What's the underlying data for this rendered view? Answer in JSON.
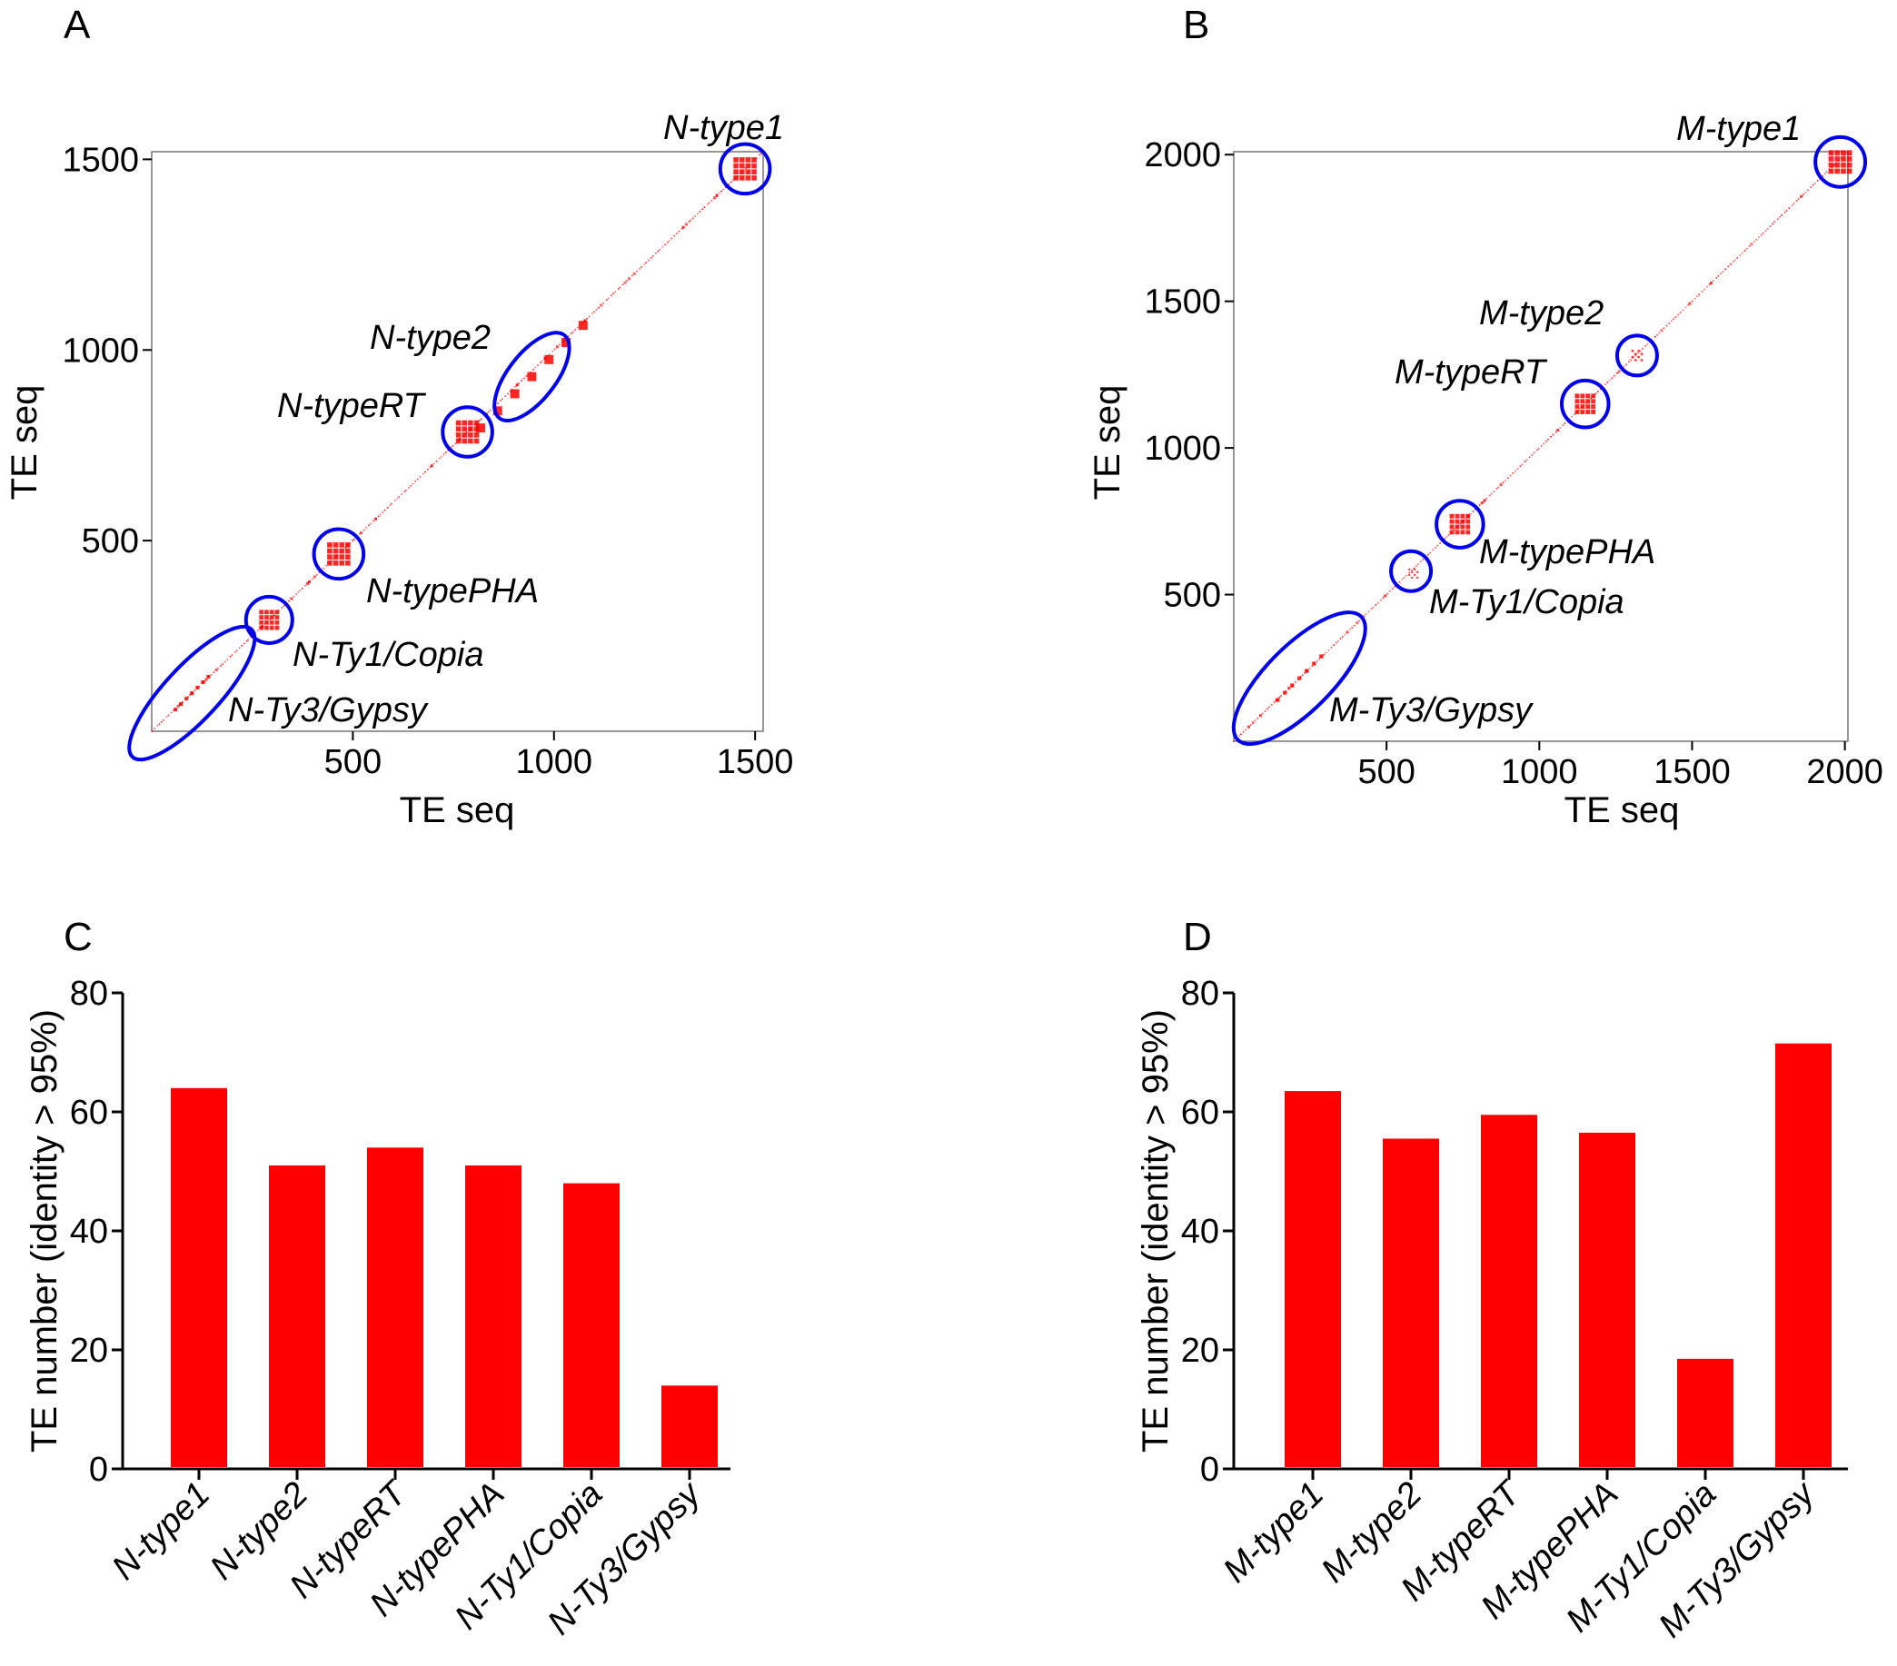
{
  "panels": [
    {
      "id": "A",
      "label": "A"
    },
    {
      "id": "B",
      "label": "B"
    },
    {
      "id": "C",
      "label": "C"
    },
    {
      "id": "D",
      "label": "D"
    }
  ],
  "chart_data": [
    {
      "panel": "A",
      "type": "scatter",
      "title": "",
      "xlabel": "TE seq",
      "ylabel": "TE seq",
      "xlim": [
        0,
        1520
      ],
      "ylim": [
        0,
        1520
      ],
      "xticks": [
        500,
        1000,
        1500
      ],
      "yticks": [
        500,
        1000,
        1500
      ],
      "colors": {
        "dots": "#ff0000",
        "circles": "#0000ee"
      },
      "clusters": [
        {
          "label": "N-type1",
          "x": 1475,
          "y": 1475,
          "halfsize": 30,
          "shape": "circle"
        },
        {
          "label": "N-type2",
          "x": 945,
          "y": 930,
          "halfsize": 25,
          "shape": "ellipse"
        },
        {
          "label": "N-typeRT",
          "x": 785,
          "y": 785,
          "halfsize": 30,
          "shape": "circle"
        },
        {
          "label": "N-typePHA",
          "x": 465,
          "y": 465,
          "halfsize": 30,
          "shape": "circle"
        },
        {
          "label": "N-Ty1/Copia",
          "x": 292,
          "y": 292,
          "halfsize": 26,
          "shape": "circle"
        },
        {
          "label": "N-Ty3/Gypsy",
          "x": 100,
          "y": 100,
          "halfsize": 8,
          "shape": "ellipse"
        }
      ]
    },
    {
      "panel": "B",
      "type": "scatter",
      "title": "",
      "xlabel": "TE seq",
      "ylabel": "TE seq",
      "xlim": [
        0,
        2010
      ],
      "ylim": [
        0,
        2010
      ],
      "xticks": [
        500,
        1000,
        1500,
        2000
      ],
      "yticks": [
        500,
        1000,
        1500,
        2000
      ],
      "colors": {
        "dots": "#ff0000",
        "circles": "#0000ee"
      },
      "clusters": [
        {
          "label": "M-type1",
          "x": 1985,
          "y": 1975,
          "halfsize": 40,
          "shape": "circle"
        },
        {
          "label": "M-type2",
          "x": 1320,
          "y": 1315,
          "halfsize": 20,
          "shape": "circle"
        },
        {
          "label": "M-typeRT",
          "x": 1150,
          "y": 1150,
          "halfsize": 35,
          "shape": "circle"
        },
        {
          "label": "M-typePHA",
          "x": 740,
          "y": 740,
          "halfsize": 35,
          "shape": "circle"
        },
        {
          "label": "M-Ty1/Copia",
          "x": 580,
          "y": 580,
          "halfsize": 10,
          "shape": "circle"
        },
        {
          "label": "M-Ty3/Gypsy",
          "x": 215,
          "y": 215,
          "halfsize": 14,
          "shape": "ellipse"
        }
      ]
    },
    {
      "panel": "C",
      "type": "bar",
      "title": "",
      "xlabel": "",
      "ylabel": "TE number (identity > 95%)",
      "ylim": [
        0,
        80
      ],
      "yticks": [
        0,
        20,
        40,
        60,
        80
      ],
      "categories": [
        "N-type1",
        "N-type2",
        "N-typeRT",
        "N-typePHA",
        "N-Ty1/Copia",
        "N-Ty3/Gypsy"
      ],
      "values": [
        64,
        51,
        54,
        51,
        48,
        14
      ],
      "color": "#ff0000"
    },
    {
      "panel": "D",
      "type": "bar",
      "title": "",
      "xlabel": "",
      "ylabel": "TE number (identity > 95%)",
      "ylim": [
        0,
        80
      ],
      "yticks": [
        0,
        20,
        40,
        60,
        80
      ],
      "categories": [
        "M-type1",
        "M-type2",
        "M-typeRT",
        "M-typePHA",
        "M-Ty1/Copia",
        "M-Ty3/Gypsy"
      ],
      "values": [
        63.5,
        55.5,
        59.5,
        56.5,
        18.5,
        71.5
      ],
      "color": "#ff0000"
    }
  ]
}
